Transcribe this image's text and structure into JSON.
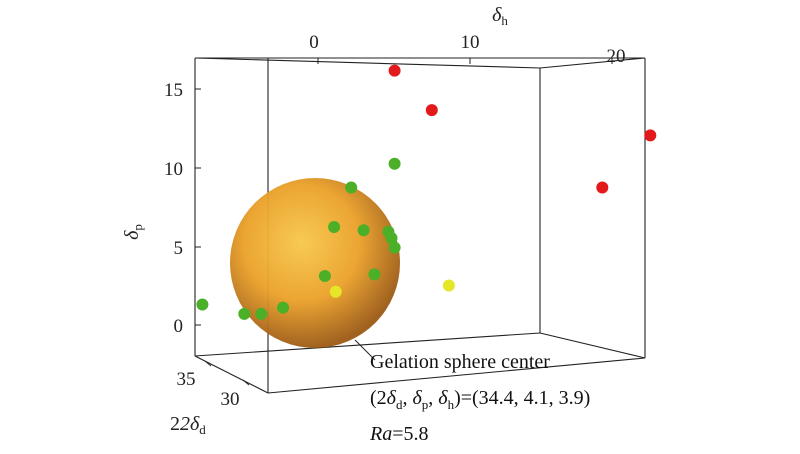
{
  "chart_data": {
    "type": "scatter",
    "title": "",
    "axes": {
      "dh": {
        "label": "δ",
        "sub": "h",
        "ticks": [
          "0",
          "10",
          "20"
        ]
      },
      "dp": {
        "label": "δ",
        "sub": "p",
        "ticks": [
          "0",
          "5",
          "10",
          "15"
        ]
      },
      "dd": {
        "label": "2δ",
        "sub": "d",
        "ticks": [
          "30",
          "35"
        ]
      }
    },
    "projection_note": "3D scatter; points given as (δh, δp) projected coordinates",
    "series": [
      {
        "color": "#e31a1c",
        "points": [
          {
            "dh": 5.2,
            "dp": 16.1
          },
          {
            "dh": 7.6,
            "dp": 13.6
          },
          {
            "dh": 18.6,
            "dp": 8.7
          },
          {
            "dh": 21.7,
            "dp": 12.0
          }
        ]
      },
      {
        "color": "#4caf28",
        "points": [
          {
            "dh": 5.2,
            "dp": 10.2
          },
          {
            "dh": 2.4,
            "dp": 8.7
          },
          {
            "dh": 1.3,
            "dp": 6.2
          },
          {
            "dh": 3.2,
            "dp": 6.0
          },
          {
            "dh": 4.8,
            "dp": 5.9
          },
          {
            "dh": 5.0,
            "dp": 5.5
          },
          {
            "dh": 5.2,
            "dp": 4.9
          },
          {
            "dh": 3.9,
            "dp": 3.2
          },
          {
            "dh": 0.7,
            "dp": 3.1
          },
          {
            "dh": -2.0,
            "dp": 1.1
          },
          {
            "dh": -3.4,
            "dp": 0.7
          },
          {
            "dh": -4.5,
            "dp": 0.7
          },
          {
            "dh": -7.2,
            "dp": 1.3
          }
        ]
      },
      {
        "color": "#e6e629",
        "points": [
          {
            "dh": 1.4,
            "dp": 2.1
          },
          {
            "dh": 8.7,
            "dp": 2.5
          }
        ]
      }
    ],
    "sphere": {
      "center": {
        "dd": 34.4,
        "dp": 4.1,
        "dh": 3.9
      },
      "Ra": 5.8,
      "colors": [
        "#f5c040",
        "#e89a20",
        "#a86018"
      ]
    }
  },
  "annotation": {
    "line1": "Gelation sphere center",
    "line2_prefix": "(2",
    "line2_dd": "δ",
    "line2_dd_sub": "d",
    "line2_sep1": ", ",
    "line2_dp": "δ",
    "line2_dp_sub": "p",
    "line2_sep2": ", ",
    "line2_dh": "δ",
    "line2_dh_sub": "h",
    "line2_values": ")=(34.4, 4.1, 3.9)",
    "ra_label": "Ra",
    "ra_value": "=5.8"
  }
}
